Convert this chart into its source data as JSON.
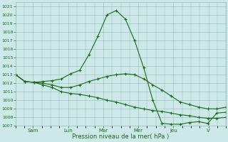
{
  "background_color": "#cce8e8",
  "grid_color": "#99bbbb",
  "line_color": "#1a6b1a",
  "xlabel": "Pression niveau de la mer( hPa )",
  "ylim": [
    1007,
    1021.5
  ],
  "yticks": [
    1007,
    1008,
    1009,
    1010,
    1011,
    1012,
    1013,
    1014,
    1015,
    1016,
    1017,
    1018,
    1019,
    1020,
    1021
  ],
  "x_day_labels": [
    "Sam",
    "Lun",
    "Mar",
    "Mer",
    "Jeu",
    "V"
  ],
  "x_day_positions": [
    2,
    6,
    10,
    14,
    18,
    22
  ],
  "xlim": [
    0,
    24
  ],
  "series": [
    [
      1013.0,
      1012.2,
      1012.1,
      1012.2,
      1012.3,
      1012.5,
      1013.1,
      1013.5,
      1015.3,
      1017.5,
      1020.0,
      1020.5,
      1019.5,
      1017.0,
      1013.8,
      1010.0,
      1007.3,
      1007.2,
      1007.2,
      1007.4,
      1007.5,
      1007.3,
      1008.5,
      1008.6
    ],
    [
      1013.0,
      1012.2,
      1012.1,
      1012.0,
      1011.8,
      1011.5,
      1011.5,
      1011.8,
      1012.2,
      1012.5,
      1012.8,
      1013.0,
      1013.1,
      1013.0,
      1012.5,
      1011.8,
      1011.2,
      1010.5,
      1009.8,
      1009.5,
      1009.2,
      1009.0,
      1009.0,
      1009.2
    ],
    [
      1013.0,
      1012.2,
      1012.1,
      1011.8,
      1011.5,
      1011.0,
      1010.8,
      1010.7,
      1010.5,
      1010.3,
      1010.0,
      1009.8,
      1009.5,
      1009.2,
      1009.0,
      1008.8,
      1008.7,
      1008.5,
      1008.3,
      1008.2,
      1008.0,
      1007.9,
      1007.9,
      1008.0
    ]
  ],
  "marker": "+",
  "marker_size": 3,
  "linewidth": 0.8
}
